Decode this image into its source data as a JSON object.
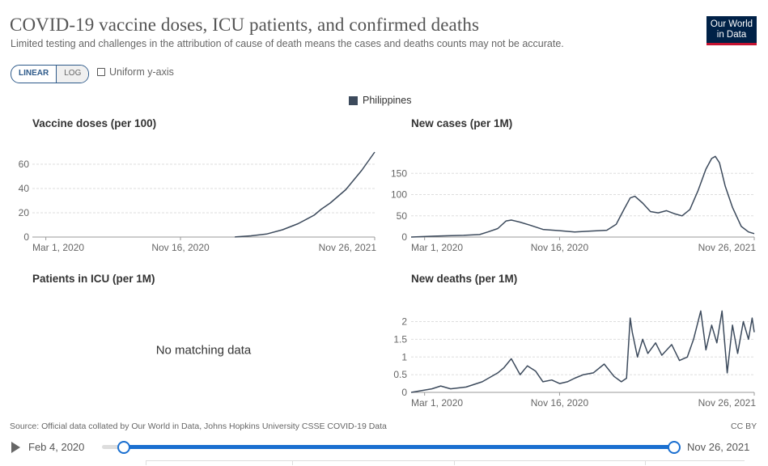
{
  "title": "COVID-19 vaccine doses, ICU patients, and confirmed deaths",
  "subtitle": "Limited testing and challenges in the attribution of cause of death means the cases and deaths counts may not be accurate.",
  "logo": {
    "line1": "Our World",
    "line2": "in Data"
  },
  "controls": {
    "linear_label": "LINEAR",
    "log_label": "LOG",
    "uniform_label": "Uniform y-axis",
    "uniform_checked": false,
    "scale_selected": "LINEAR"
  },
  "legend": {
    "label": "Philippines",
    "color": "#3c4a5c"
  },
  "chart_data": [
    {
      "type": "line",
      "title": "Vaccine doses (per 100)",
      "ylim": [
        0,
        70
      ],
      "yticks": [
        "0",
        "20",
        "40",
        "60"
      ],
      "ytick_values": [
        0,
        20,
        40,
        60
      ],
      "xticks": [
        "Mar 1, 2020",
        "Nov 16, 2020",
        "Nov 26, 2021"
      ],
      "series": [
        {
          "name": "Philippines",
          "x": [
            "2021-03-01",
            "2021-04-01",
            "2021-05-01",
            "2021-06-01",
            "2021-07-01",
            "2021-08-01",
            "2021-08-15",
            "2021-09-01",
            "2021-10-01",
            "2021-11-01",
            "2021-11-26"
          ],
          "values": [
            0.1,
            1,
            2.5,
            6,
            11,
            18,
            23,
            28,
            39,
            55,
            70
          ]
        }
      ]
    },
    {
      "type": "line",
      "title": "New cases (per 1M)",
      "ylim": [
        0,
        200
      ],
      "yticks": [
        "0",
        "50",
        "100",
        "150"
      ],
      "ytick_values": [
        0,
        50,
        100,
        150
      ],
      "xticks": [
        "Mar 1, 2020",
        "Nov 16, 2020",
        "Nov 26, 2021"
      ],
      "series": [
        {
          "name": "Philippines",
          "x": [
            "2020-02-04",
            "2020-03-20",
            "2020-04-15",
            "2020-05-15",
            "2020-06-15",
            "2020-07-01",
            "2020-07-20",
            "2020-08-05",
            "2020-08-15",
            "2020-09-01",
            "2020-09-20",
            "2020-10-15",
            "2020-11-16",
            "2020-12-15",
            "2021-01-15",
            "2021-02-15",
            "2021-03-05",
            "2021-03-20",
            "2021-04-01",
            "2021-04-10",
            "2021-04-25",
            "2021-05-10",
            "2021-05-25",
            "2021-06-10",
            "2021-06-25",
            "2021-07-10",
            "2021-07-25",
            "2021-08-10",
            "2021-08-25",
            "2021-09-05",
            "2021-09-12",
            "2021-09-20",
            "2021-10-01",
            "2021-10-15",
            "2021-11-01",
            "2021-11-15",
            "2021-11-26"
          ],
          "values": [
            0,
            2,
            3,
            4,
            6,
            12,
            20,
            38,
            40,
            35,
            28,
            18,
            15,
            12,
            14,
            16,
            30,
            65,
            92,
            96,
            80,
            60,
            57,
            62,
            55,
            50,
            65,
            110,
            160,
            185,
            190,
            175,
            120,
            70,
            25,
            12,
            8
          ]
        }
      ]
    },
    {
      "type": "line",
      "title": "Patients in ICU (per 1M)",
      "no_data_text": "No matching data",
      "series": []
    },
    {
      "type": "line",
      "title": "New deaths (per 1M)",
      "ylim": [
        0,
        2.4
      ],
      "yticks": [
        "0",
        "0.5",
        "1",
        "1.5",
        "2"
      ],
      "ytick_values": [
        0,
        0.5,
        1,
        1.5,
        2
      ],
      "xticks": [
        "Mar 1, 2020",
        "Nov 16, 2020",
        "Nov 26, 2021"
      ],
      "series": [
        {
          "name": "Philippines",
          "x": [
            "2020-02-04",
            "2020-03-15",
            "2020-04-01",
            "2020-04-20",
            "2020-05-20",
            "2020-06-20",
            "2020-07-20",
            "2020-08-01",
            "2020-08-15",
            "2020-09-01",
            "2020-09-15",
            "2020-10-01",
            "2020-10-15",
            "2020-11-01",
            "2020-11-16",
            "2020-12-01",
            "2020-12-15",
            "2021-01-01",
            "2021-01-20",
            "2021-02-10",
            "2021-03-01",
            "2021-03-15",
            "2021-03-25",
            "2021-04-01",
            "2021-04-05",
            "2021-04-15",
            "2021-04-25",
            "2021-05-05",
            "2021-05-20",
            "2021-06-01",
            "2021-06-20",
            "2021-07-05",
            "2021-07-20",
            "2021-08-01",
            "2021-08-15",
            "2021-08-25",
            "2021-09-05",
            "2021-09-15",
            "2021-09-25",
            "2021-10-05",
            "2021-10-15",
            "2021-10-25",
            "2021-11-05",
            "2021-11-15",
            "2021-11-22",
            "2021-11-26"
          ],
          "values": [
            0,
            0.1,
            0.18,
            0.1,
            0.15,
            0.3,
            0.55,
            0.7,
            0.95,
            0.5,
            0.75,
            0.6,
            0.3,
            0.35,
            0.25,
            0.3,
            0.4,
            0.5,
            0.55,
            0.8,
            0.45,
            0.3,
            0.4,
            2.1,
            1.7,
            1.0,
            1.5,
            1.1,
            1.4,
            1.05,
            1.35,
            0.9,
            1.0,
            1.5,
            2.3,
            1.2,
            1.9,
            1.4,
            2.3,
            0.55,
            1.9,
            1.1,
            2.0,
            1.5,
            2.1,
            1.7
          ]
        }
      ]
    }
  ],
  "source": "Source: Official data collated by Our World in Data, Johns Hopkins University CSSE COVID-19 Data",
  "license": "CC BY",
  "timeline": {
    "start_label": "Feb 4, 2020",
    "end_label": "Nov 26, 2021",
    "start": "2020-02-04",
    "end": "2021-11-26"
  }
}
